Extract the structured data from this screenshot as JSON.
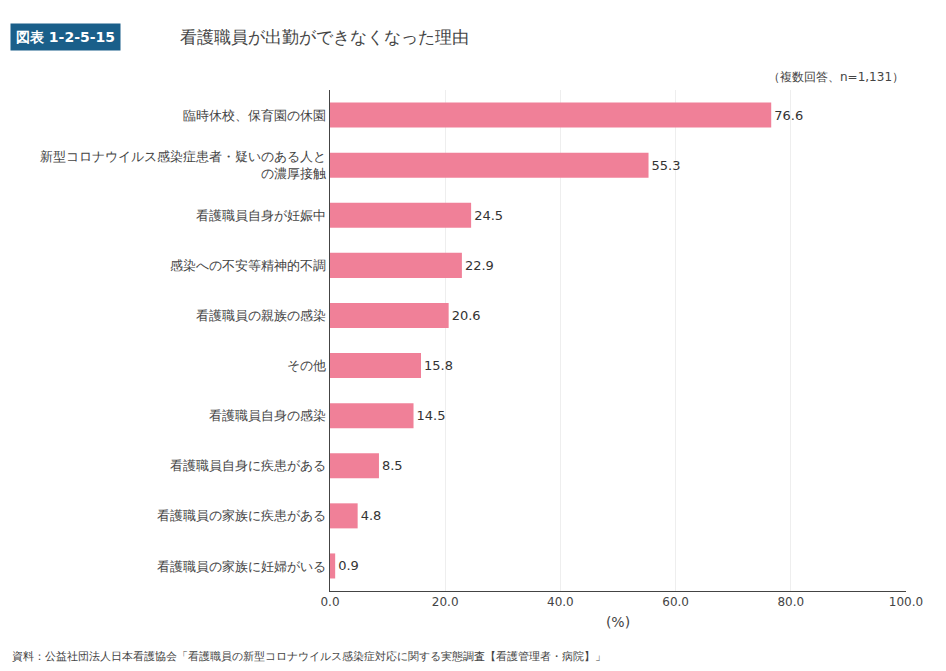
{
  "chart_data": {
    "type": "bar",
    "orientation": "horizontal",
    "title": "看護職員が出勤ができなくなった理由",
    "subtitle": "（複数回答、n=1,131）",
    "annotations": [
      "図表 1-2-5-15",
      "資料：公益社団法人日本看護協会「看護職員の新型コロナウイルス感染症対応に関する実態調査【看護管理者・病院】」"
    ],
    "xlabel": "(%)",
    "categories": [
      "看護職員の家族に妊婦がいる",
      "看護職員の家族に疾患がある",
      "看護職員自身に疾患がある",
      "看護職員自身の感染",
      "その他",
      "看護職員の親族の感染",
      "感染への不安等精神的不調",
      "看護職員自身が妊娠中",
      "新型コロナウイルス感染症患者・疑いのある人と\nの濃厚接触",
      "臨時休校、保育園の休園"
    ],
    "values": [
      0.9,
      4.8,
      8.5,
      14.5,
      15.8,
      20.6,
      22.9,
      24.5,
      55.3,
      76.6
    ],
    "color": "#f08098",
    "xlim": [
      0,
      100.0
    ],
    "xticks": [
      {
        "value": 0.0,
        "label": "0.0"
      },
      {
        "value": 20.0,
        "label": "20.0"
      },
      {
        "value": 40.0,
        "label": "40.0"
      },
      {
        "value": 60.0,
        "label": "60.0"
      },
      {
        "value": 80.0,
        "label": "80.0"
      },
      {
        "value": 100.0,
        "label": "100.0"
      }
    ],
    "grid": true,
    "data_labels": true
  }
}
